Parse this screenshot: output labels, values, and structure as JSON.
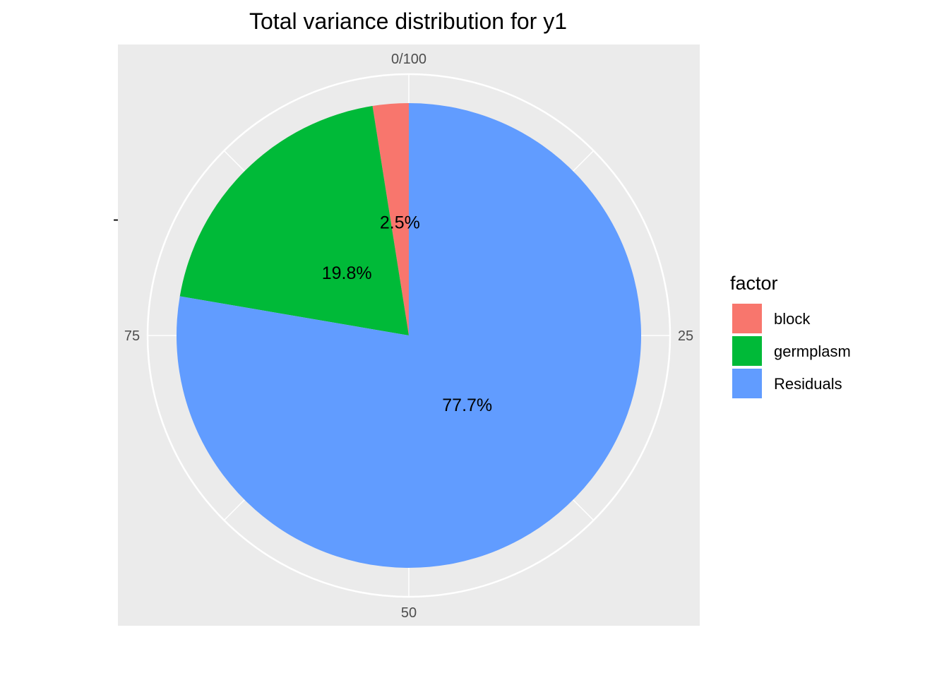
{
  "chart_data": {
    "type": "pie",
    "title": "Total variance distribution for y1",
    "y_axis_label": "-",
    "categories": [
      "block",
      "germplasm",
      "Residuals"
    ],
    "values": [
      2.5,
      19.8,
      77.7
    ],
    "labels": [
      "2.5%",
      "19.8%",
      "77.7%"
    ],
    "colors": [
      "#F8766D",
      "#00BA38",
      "#619CFF"
    ],
    "angular_axis": {
      "range": [
        0,
        100
      ],
      "ticks": [
        "0/100",
        "25",
        "50",
        "75"
      ]
    },
    "background": "#EBEBEB",
    "grid": true,
    "legend": {
      "title": "factor",
      "position": "right"
    }
  }
}
